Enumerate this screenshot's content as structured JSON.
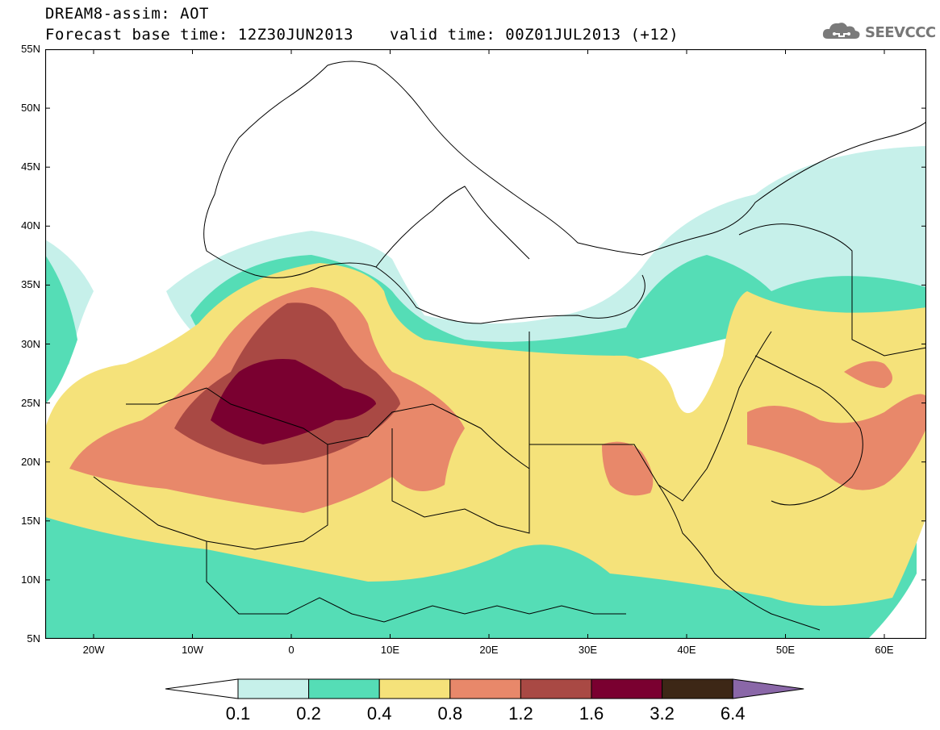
{
  "header": {
    "title": "DREAM8-assim: AOT",
    "base_time": "Forecast base time: 12Z30JUN2013",
    "valid_time": "valid time: 00Z01JUL2013 (+12)"
  },
  "logo": {
    "text": "SEEVCCC",
    "icon": "cloud-logo-icon"
  },
  "map": {
    "field": "AOT",
    "lat_labels": [
      "55N",
      "50N",
      "45N",
      "40N",
      "35N",
      "30N",
      "25N",
      "20N",
      "15N",
      "10N",
      "5N"
    ],
    "lon_labels": [
      "20W",
      "10W",
      "0",
      "10E",
      "20E",
      "30E",
      "40E",
      "50E",
      "60E"
    ]
  },
  "colorbar": {
    "levels": [
      "0.1",
      "0.2",
      "0.4",
      "0.8",
      "1.2",
      "1.6",
      "3.2",
      "6.4"
    ],
    "colors": [
      "#ffffff",
      "#c6f0ea",
      "#55ddb6",
      "#f5e27a",
      "#e8886a",
      "#a94944",
      "#7a0030",
      "#3d2716",
      "#8a67a8"
    ]
  }
}
